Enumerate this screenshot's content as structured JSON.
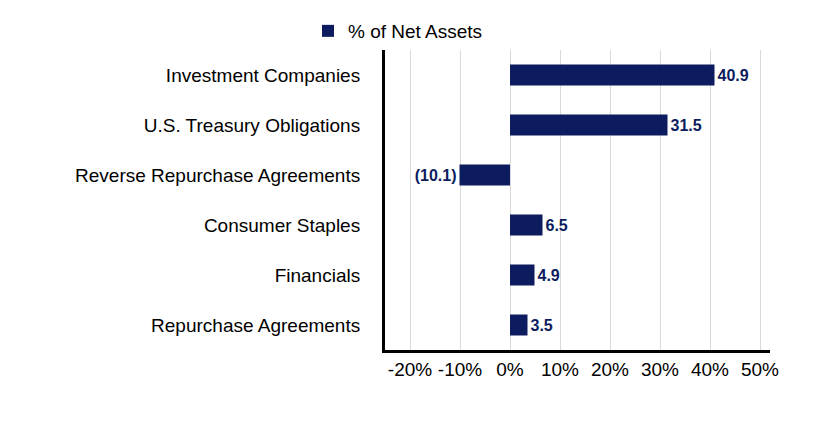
{
  "chart_data": {
    "type": "bar",
    "orientation": "horizontal",
    "categories": [
      "Investment Companies",
      "U.S. Treasury Obligations",
      "Reverse Repurchase Agreements",
      "Consumer Staples",
      "Financials",
      "Repurchase Agreements"
    ],
    "series": [
      {
        "name": "% of Net Assets",
        "color": "#0c1c5e",
        "values": [
          40.9,
          31.5,
          -10.1,
          6.5,
          4.9,
          3.5
        ],
        "value_labels": [
          "40.9",
          "31.5",
          "(10.1)",
          "6.5",
          "4.9",
          "3.5"
        ]
      }
    ],
    "xlim": [
      -25,
      52
    ],
    "xticks": [
      {
        "value": -20,
        "label": "-20%"
      },
      {
        "value": -10,
        "label": "-10%"
      },
      {
        "value": 0,
        "label": "0%"
      },
      {
        "value": 10,
        "label": "10%"
      },
      {
        "value": 20,
        "label": "20%"
      },
      {
        "value": 30,
        "label": "30%"
      },
      {
        "value": 40,
        "label": "40%"
      },
      {
        "value": 50,
        "label": "50%"
      }
    ],
    "grid": true,
    "data_labels": true,
    "legend": "top"
  }
}
